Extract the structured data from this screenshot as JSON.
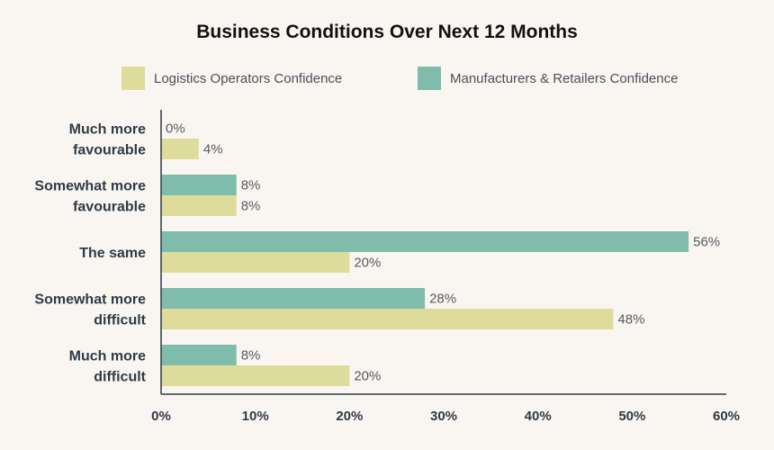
{
  "chart_data": {
    "type": "bar",
    "orientation": "horizontal",
    "title": "Business Conditions Over Next 12 Months",
    "categories": [
      [
        "Much more",
        "favourable"
      ],
      [
        "Somewhat more",
        "favourable"
      ],
      [
        "The same"
      ],
      [
        "Somewhat more",
        "difficult"
      ],
      [
        "Much more",
        "difficult"
      ]
    ],
    "series": [
      {
        "name": "Manufacturers & Retailers Confidence",
        "color": "#7fbcab",
        "values": [
          0,
          8,
          56,
          28,
          8
        ],
        "labels": [
          "0%",
          "8%",
          "56%",
          "28%",
          "8%"
        ]
      },
      {
        "name": "Logistics Operators Confidence",
        "color": "#dedc9b",
        "values": [
          4,
          8,
          20,
          48,
          20
        ],
        "labels": [
          "4%",
          "8%",
          "20%",
          "48%",
          "20%"
        ]
      }
    ],
    "xlim": [
      0,
      60
    ],
    "xticks": [
      0,
      10,
      20,
      30,
      40,
      50,
      60
    ],
    "xtick_labels": [
      "0%",
      "10%",
      "20%",
      "30%",
      "40%",
      "50%",
      "60%"
    ],
    "legend": {
      "placement": "top",
      "order": [
        "Logistics Operators Confidence",
        "Manufacturers & Retailers Confidence"
      ]
    },
    "grid": false
  }
}
